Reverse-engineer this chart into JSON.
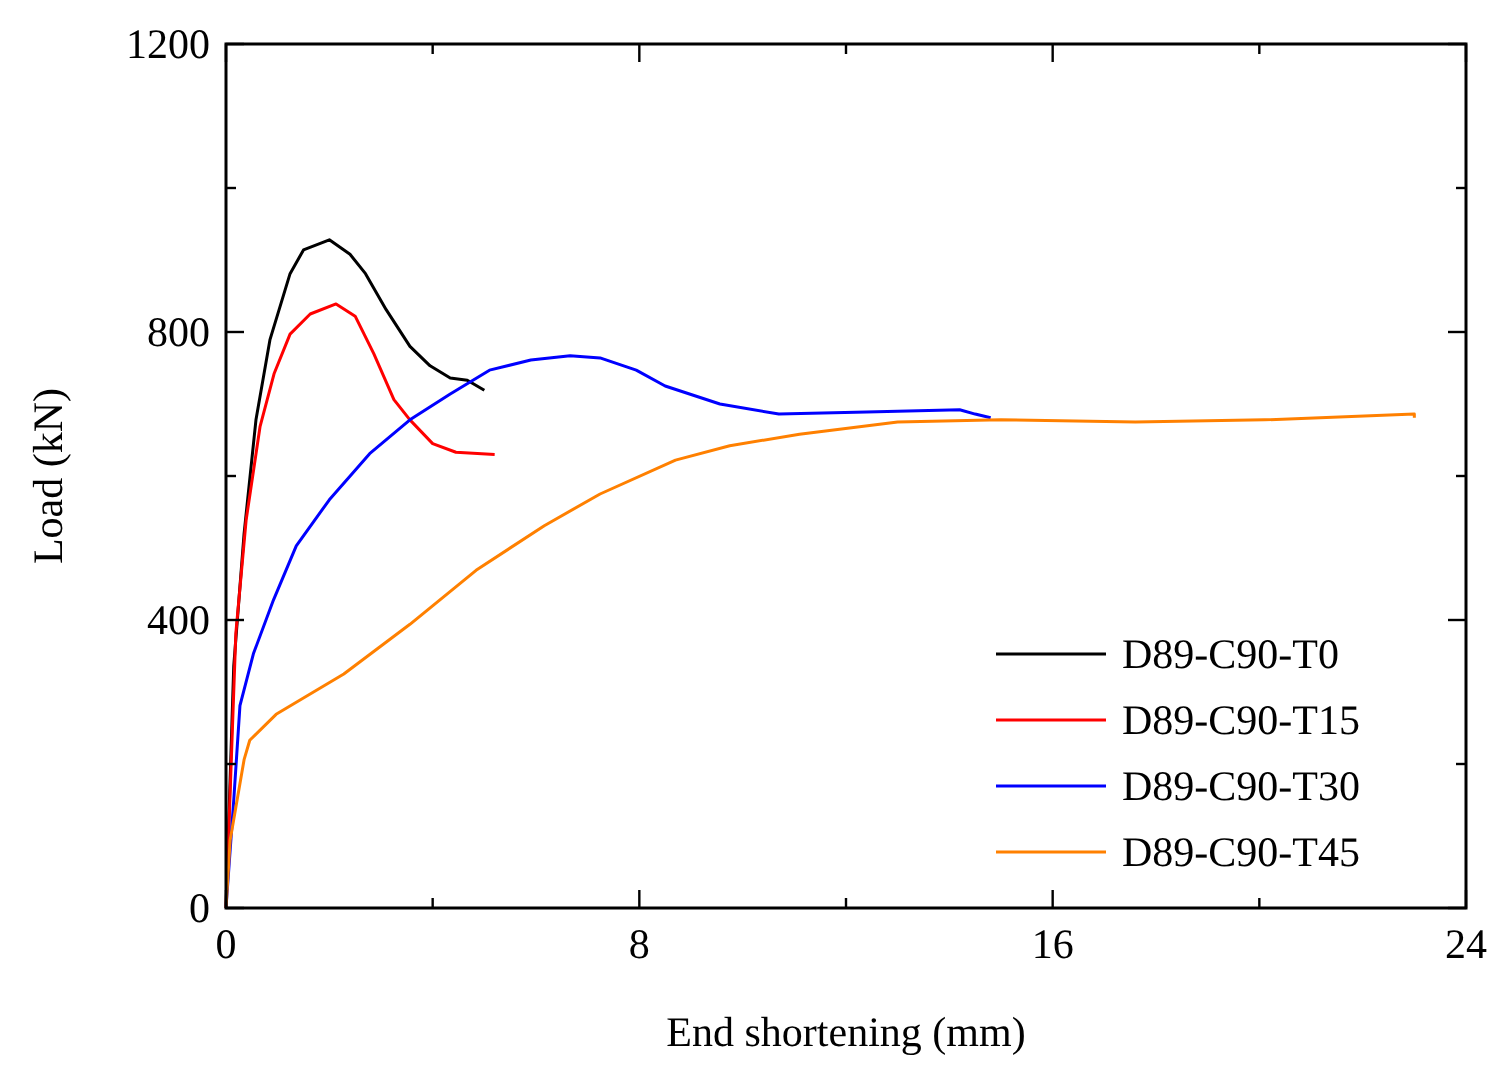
{
  "chart_data": {
    "type": "line",
    "xlabel": "End shortening (mm)",
    "ylabel": "Load (kN)",
    "xlim": [
      0,
      24
    ],
    "ylim": [
      0,
      1200
    ],
    "xticks": [
      0,
      {
        "value": 4,
        "label": null
      },
      8,
      {
        "value": 12,
        "label": null
      },
      16,
      {
        "value": 20,
        "label": null
      },
      24
    ],
    "yticks": [
      0,
      {
        "value": 200,
        "label": null
      },
      400,
      {
        "value": 600,
        "label": null
      },
      800,
      {
        "value": 1000,
        "label": null
      },
      1200
    ],
    "grid": false,
    "legend": "bottom right",
    "marker": "none",
    "line_style": "solid",
    "series": [
      {
        "name": "D89-C90-T0",
        "color": "#000000",
        "x": [
          0,
          0.15,
          0.35,
          0.58,
          0.85,
          1.24,
          1.5,
          2.0,
          2.4,
          2.7,
          3.1,
          3.56,
          3.95,
          4.34,
          4.67,
          5.0
        ],
        "values": [
          0,
          336,
          520,
          678,
          789,
          881,
          914,
          928,
          908,
          881,
          831,
          780,
          753,
          736,
          733,
          719
        ]
      },
      {
        "name": "D89-C90-T15",
        "color": "#ff0000",
        "x": [
          0,
          0.19,
          0.39,
          0.66,
          0.93,
          1.24,
          1.63,
          2.13,
          2.5,
          2.86,
          3.25,
          3.56,
          4.0,
          4.45,
          5.2
        ],
        "values": [
          0,
          381,
          539,
          669,
          742,
          797,
          825,
          839,
          822,
          770,
          706,
          678,
          645,
          633,
          630
        ]
      },
      {
        "name": "D89-C90-T30",
        "color": "#0000ff",
        "x": [
          0,
          0.15,
          0.27,
          0.53,
          0.92,
          1.36,
          2.0,
          2.78,
          3.56,
          4.34,
          5.1,
          5.9,
          6.66,
          7.24,
          7.94,
          8.5,
          9.56,
          10.7,
          12.4,
          14.2,
          14.5,
          14.8
        ],
        "values": [
          0,
          150,
          281,
          353,
          428,
          503,
          567,
          631,
          678,
          714,
          747,
          761,
          767,
          764,
          747,
          725,
          700,
          686,
          689,
          692,
          686,
          681
        ]
      },
      {
        "name": "D89-C90-T45",
        "color": "#ff8000",
        "x": [
          0,
          0.08,
          0.35,
          0.46,
          0.97,
          2.28,
          3.56,
          4.84,
          6.16,
          7.24,
          8.7,
          9.75,
          11.1,
          13.0,
          15.0,
          17.6,
          20.1,
          23.0,
          23.0
        ],
        "values": [
          0,
          94,
          206,
          233,
          269,
          325,
          394,
          469,
          531,
          575,
          622,
          642,
          658,
          675,
          678,
          675,
          678,
          686,
          681
        ]
      }
    ]
  }
}
